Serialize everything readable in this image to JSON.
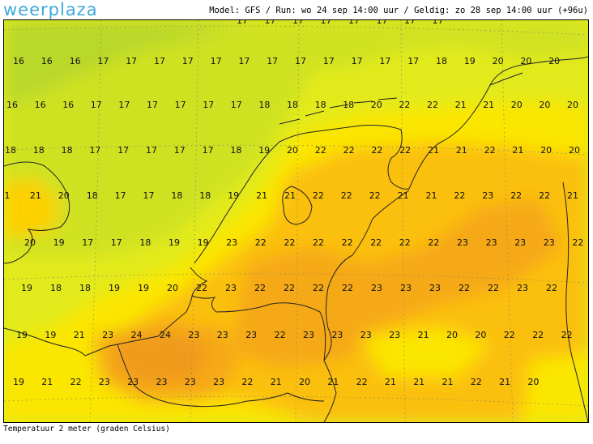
{
  "brand": {
    "logo_text": "weerplaza"
  },
  "header": {
    "model_info": "Model: GFS / Run: wo 24 sep 14:00 uur / Geldig: zo 28 sep 14:00 uur (+96u)"
  },
  "footer": {
    "caption": "Temperatuur 2 meter (graden Celsius)"
  },
  "map": {
    "parameter": "temperature-2m",
    "unit": "°C",
    "colors": {
      "t16": "#b9d82a",
      "t17": "#cfe223",
      "t18": "#e3ea1c",
      "t19": "#f1ec10",
      "t20": "#fbe605",
      "t21": "#fdd000",
      "t22": "#fbc008",
      "t23": "#f6a914",
      "t24": "#f09a1c",
      "coast": "#222222",
      "grid": "#8a8a60"
    },
    "rows": [
      [
        "17",
        "17",
        "17",
        "17",
        "17",
        "17",
        "17",
        "17"
      ],
      [
        "16",
        "16",
        "16",
        "17",
        "17",
        "17",
        "17",
        "17",
        "17",
        "17",
        "17",
        "17",
        "17",
        "17",
        "17",
        "18",
        "19",
        "20",
        "20",
        "20"
      ],
      [
        "16",
        "16",
        "16",
        "17",
        "17",
        "17",
        "17",
        "17",
        "17",
        "18",
        "18",
        "18",
        "18",
        "20",
        "22",
        "22",
        "21",
        "21",
        "20",
        "20",
        "20"
      ],
      [
        "18",
        "18",
        "18",
        "17",
        "17",
        "17",
        "17",
        "17",
        "18",
        "19",
        "20",
        "22",
        "22",
        "22",
        "22",
        "21",
        "21",
        "22",
        "21",
        "20",
        "20"
      ],
      [
        "1",
        "21",
        "20",
        "18",
        "17",
        "17",
        "18",
        "18",
        "19",
        "21",
        "21",
        "22",
        "22",
        "22",
        "21",
        "21",
        "22",
        "23",
        "22",
        "22",
        "21"
      ],
      [
        "20",
        "19",
        "17",
        "17",
        "18",
        "19",
        "19",
        "23",
        "22",
        "22",
        "22",
        "22",
        "22",
        "22",
        "22",
        "23",
        "23",
        "23",
        "23",
        "22"
      ],
      [
        "19",
        "18",
        "18",
        "19",
        "19",
        "20",
        "22",
        "23",
        "22",
        "22",
        "22",
        "22",
        "23",
        "23",
        "23",
        "22",
        "22",
        "23",
        "22"
      ],
      [
        "19",
        "19",
        "21",
        "23",
        "24",
        "24",
        "23",
        "23",
        "23",
        "22",
        "23",
        "23",
        "23",
        "23",
        "21",
        "20",
        "20",
        "22",
        "22",
        "22"
      ],
      [
        "19",
        "21",
        "22",
        "23",
        "23",
        "23",
        "23",
        "23",
        "22",
        "21",
        "20",
        "21",
        "22",
        "21",
        "21",
        "21",
        "22",
        "21",
        "20"
      ]
    ]
  }
}
